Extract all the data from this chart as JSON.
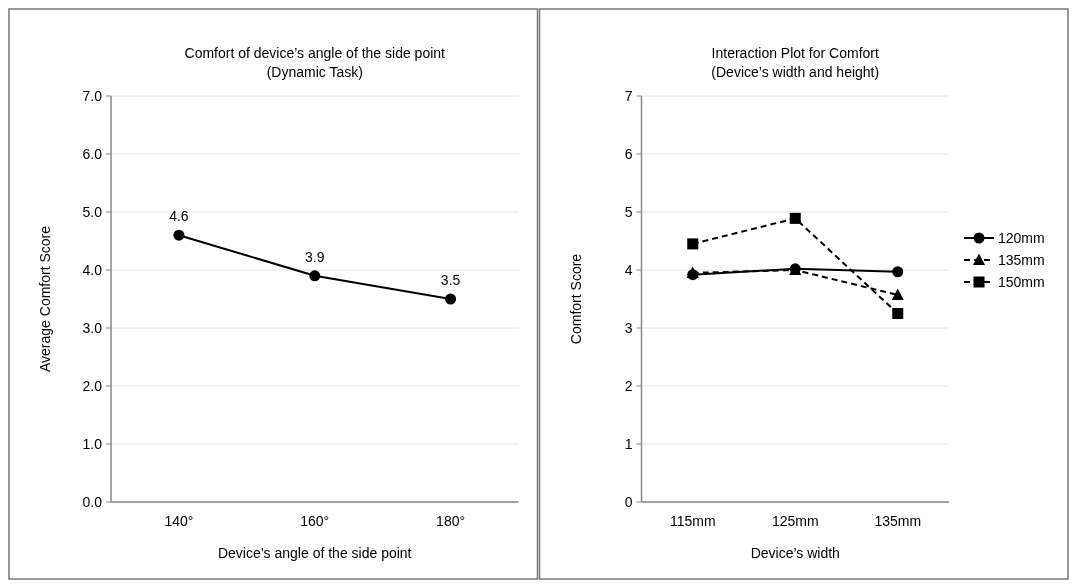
{
  "chart_data": [
    {
      "type": "line",
      "title": "Comfort of device’s angle of the side point",
      "subtitle": "(Dynamic Task)",
      "xlabel": "Device’s angle of the side point",
      "ylabel": "Average Comfort Score",
      "categories": [
        "140°",
        "160°",
        "180°"
      ],
      "series": [
        {
          "color": "#000000",
          "values": [
            4.6,
            3.9,
            3.5
          ]
        }
      ],
      "ylim": [
        0,
        7
      ],
      "yticks": [
        {
          "value": 0,
          "label": "0.0"
        },
        {
          "value": 1,
          "label": "1.0"
        },
        {
          "value": 2,
          "label": "2.0"
        },
        {
          "value": 3,
          "label": "3.0"
        },
        {
          "value": 4,
          "label": "4.0"
        },
        {
          "value": 5,
          "label": "5.0"
        },
        {
          "value": 6,
          "label": "6.0"
        },
        {
          "value": 7,
          "label": "7.0"
        }
      ],
      "grid": "y",
      "marker": "circle",
      "line_style": "solid",
      "data_labels": true
    },
    {
      "type": "line",
      "title": "Interaction Plot for Comfort",
      "subtitle": "(Device’s width and height)",
      "xlabel": "Device’s width",
      "ylabel": "Comfort Score",
      "categories": [
        "115mm",
        "125mm",
        "135mm"
      ],
      "series": [
        {
          "name": "120mm",
          "color": "#000000",
          "values": [
            3.92,
            4.02,
            3.97
          ],
          "marker": "circle",
          "line_style": "solid"
        },
        {
          "name": "135mm",
          "color": "#000000",
          "values": [
            3.95,
            4.0,
            3.57
          ],
          "marker": "triangle",
          "line_style": "dashed"
        },
        {
          "name": "150mm",
          "color": "#000000",
          "values": [
            4.45,
            4.89,
            3.25
          ],
          "marker": "square",
          "line_style": "dashed"
        }
      ],
      "ylim": [
        0,
        7
      ],
      "yticks": [
        0,
        1,
        2,
        3,
        4,
        5,
        6,
        7
      ],
      "grid": "y",
      "legend": "right"
    }
  ]
}
